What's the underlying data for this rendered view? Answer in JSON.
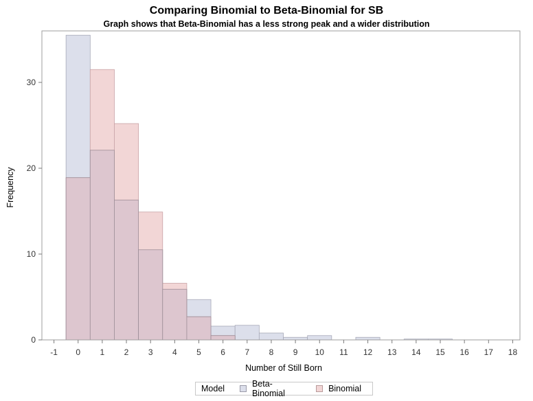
{
  "chart_data": {
    "type": "bar",
    "title": "Comparing Binomial to Beta-Binomial for SB",
    "subtitle": "Graph shows that Beta-Binomial has a less strong peak and a wider distribution",
    "xlabel": "Number of Still Born",
    "ylabel": "Frequency",
    "x_ticks": [
      -1,
      0,
      1,
      2,
      3,
      4,
      5,
      6,
      7,
      8,
      9,
      10,
      11,
      12,
      13,
      14,
      15,
      16,
      17,
      18
    ],
    "y_ticks": [
      0,
      10,
      20,
      30
    ],
    "xlim": [
      -1.5,
      18.3
    ],
    "ylim": [
      0,
      36
    ],
    "categories": [
      0,
      1,
      2,
      3,
      4,
      5,
      6,
      7,
      8,
      9,
      10,
      11,
      12,
      13,
      14,
      15,
      16,
      17,
      18
    ],
    "series": [
      {
        "name": "Beta-Binomial",
        "color": "#dcdfeb",
        "values": [
          35.5,
          22.1,
          16.3,
          10.5,
          5.9,
          4.7,
          1.6,
          1.7,
          0.8,
          0.3,
          0.5,
          0,
          0.3,
          0,
          0.1,
          0.1,
          0,
          0,
          0
        ]
      },
      {
        "name": "Binomial",
        "color": "#f2d6d6",
        "values": [
          18.9,
          31.5,
          25.2,
          14.9,
          6.6,
          2.7,
          0.5,
          0,
          0,
          0,
          0,
          0,
          0,
          0,
          0,
          0,
          0,
          0,
          0
        ]
      }
    ],
    "overlap_color": "#ddc6cf",
    "legend": {
      "title": "Model",
      "position": "bottom"
    }
  }
}
